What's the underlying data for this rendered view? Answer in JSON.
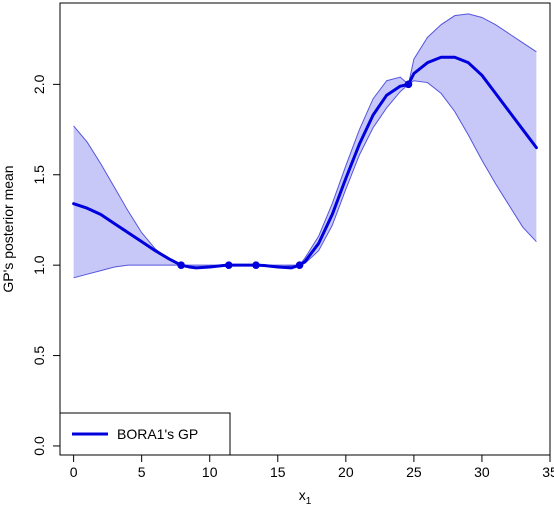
{
  "chart_data": {
    "type": "line",
    "title": "",
    "xlabel": "x",
    "xlabel_subscript": "1",
    "ylabel": "GP's posterior mean",
    "xlim": [
      -1.0,
      35.0
    ],
    "ylim": [
      -0.05,
      2.45
    ],
    "x_ticks": [
      0,
      5,
      10,
      15,
      20,
      25,
      30,
      35
    ],
    "y_ticks": [
      0.0,
      0.5,
      1.0,
      1.5,
      2.0
    ],
    "x_tick_labels": [
      "0",
      "5",
      "10",
      "15",
      "20",
      "25",
      "30",
      "35"
    ],
    "y_tick_labels": [
      "0.0",
      "0.5",
      "1.0",
      "1.5",
      "2.0"
    ],
    "grid": false,
    "legend": {
      "position": "bottom-left",
      "entries": [
        "BORA1's GP"
      ]
    },
    "colors": {
      "line": "#0000dd",
      "band_fill": "#c8c8f8",
      "band_edge": "#5555dd",
      "axis": "#000000"
    },
    "series": [
      {
        "name": "BORA1's GP",
        "kind": "mean",
        "x": [
          0,
          1,
          2,
          3,
          4,
          5,
          6,
          7,
          7.9,
          8.5,
          9,
          10,
          11,
          11.4,
          12,
          13,
          13.4,
          14,
          15,
          16,
          16.6,
          17,
          18,
          19,
          20,
          21,
          22,
          23,
          24,
          24.6,
          25,
          26,
          27,
          28,
          29,
          30,
          31,
          32,
          33,
          34
        ],
        "y": [
          1.34,
          1.315,
          1.28,
          1.23,
          1.18,
          1.13,
          1.08,
          1.035,
          1.0,
          0.99,
          0.985,
          0.99,
          0.998,
          1.0,
          1.0,
          1.0,
          1.0,
          0.998,
          0.99,
          0.985,
          1.0,
          1.02,
          1.12,
          1.28,
          1.48,
          1.67,
          1.83,
          1.94,
          1.99,
          2.0,
          2.06,
          2.12,
          2.15,
          2.15,
          2.12,
          2.05,
          1.95,
          1.85,
          1.75,
          1.65
        ]
      },
      {
        "name": "",
        "kind": "upper-band",
        "x": [
          0,
          1,
          2,
          3,
          4,
          5,
          6,
          7,
          7.9,
          9,
          11,
          13,
          15,
          16.6,
          17,
          18,
          19,
          20,
          21,
          22,
          23,
          24,
          24.6,
          25,
          26,
          27,
          28,
          29,
          30,
          31,
          32,
          33,
          34
        ],
        "y": [
          1.77,
          1.68,
          1.56,
          1.43,
          1.3,
          1.18,
          1.09,
          1.03,
          1.0,
          1.0,
          1.0,
          1.0,
          1.0,
          1.0,
          1.04,
          1.16,
          1.34,
          1.55,
          1.75,
          1.92,
          2.02,
          2.04,
          2.0,
          2.14,
          2.26,
          2.33,
          2.38,
          2.39,
          2.37,
          2.33,
          2.28,
          2.23,
          2.18
        ]
      },
      {
        "name": "",
        "kind": "lower-band",
        "x": [
          0,
          1,
          2,
          3,
          4,
          5,
          6,
          7,
          7.9,
          9,
          11,
          13,
          15,
          16.6,
          17,
          18,
          19,
          20,
          21,
          22,
          23,
          24,
          24.6,
          25,
          26,
          27,
          28,
          29,
          30,
          31,
          32,
          33,
          34
        ],
        "y": [
          0.93,
          0.95,
          0.97,
          0.99,
          1.0,
          1.0,
          1.0,
          1.0,
          1.0,
          0.985,
          0.998,
          1.0,
          0.99,
          1.0,
          1.01,
          1.08,
          1.22,
          1.42,
          1.61,
          1.76,
          1.87,
          1.96,
          2.0,
          2.02,
          2.01,
          1.95,
          1.85,
          1.72,
          1.58,
          1.45,
          1.33,
          1.21,
          1.13
        ]
      },
      {
        "name": "",
        "kind": "observations",
        "x": [
          7.9,
          11.4,
          13.4,
          16.6,
          24.6
        ],
        "y": [
          1.0,
          1.0,
          1.0,
          1.0,
          2.0
        ]
      }
    ]
  }
}
